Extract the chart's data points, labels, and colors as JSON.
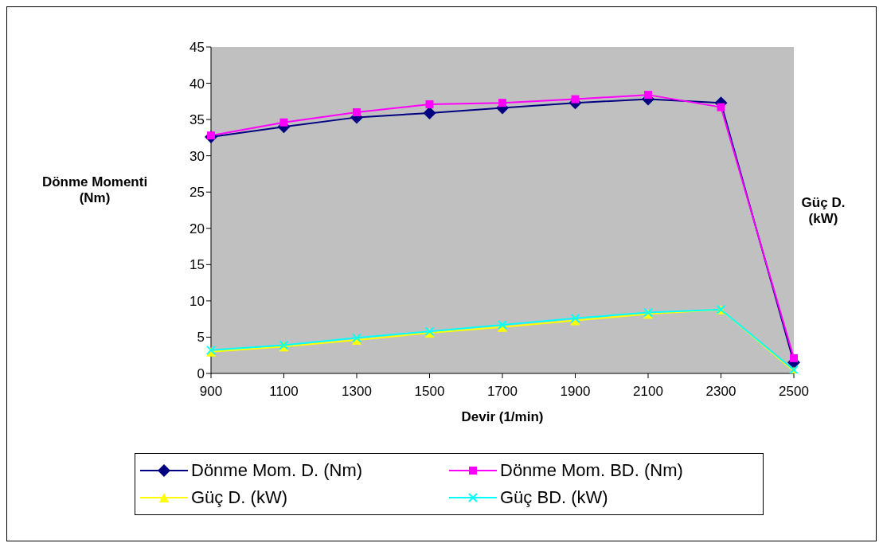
{
  "chart_data": {
    "type": "line",
    "xlabel": "Devir (1/min)",
    "ylabel": "Dönme Momenti (Nm)",
    "y2label": "Güç D. (kW)",
    "categories": [
      "900",
      "1100",
      "1300",
      "1500",
      "1700",
      "1900",
      "2100",
      "2300",
      "2500"
    ],
    "series": [
      {
        "name": "Dönme Mom. D. (Nm)",
        "color": "#000080",
        "marker": "diamond",
        "values": [
          32.6,
          34.0,
          35.3,
          35.9,
          36.6,
          37.3,
          37.8,
          37.3,
          1.5
        ]
      },
      {
        "name": "Dönme Mom. BD. (Nm)",
        "color": "#ff00ff",
        "marker": "square",
        "values": [
          32.8,
          34.6,
          36.0,
          37.1,
          37.3,
          37.8,
          38.4,
          36.7,
          2.1
        ]
      },
      {
        "name": "Güç D. (kW)",
        "color": "#ffff00",
        "marker": "triangle",
        "values": [
          3.0,
          3.7,
          4.6,
          5.6,
          6.4,
          7.3,
          8.2,
          8.8,
          0.3
        ]
      },
      {
        "name": "Güç BD. (kW)",
        "color": "#00ffff",
        "marker": "cross",
        "values": [
          3.2,
          3.9,
          4.9,
          5.8,
          6.7,
          7.6,
          8.4,
          8.8,
          0.5
        ]
      }
    ],
    "ylim": [
      0,
      45
    ],
    "yticks": [
      0,
      5,
      10,
      15,
      20,
      25,
      30,
      35,
      40,
      45
    ],
    "grid": false,
    "legend": "bottom"
  }
}
